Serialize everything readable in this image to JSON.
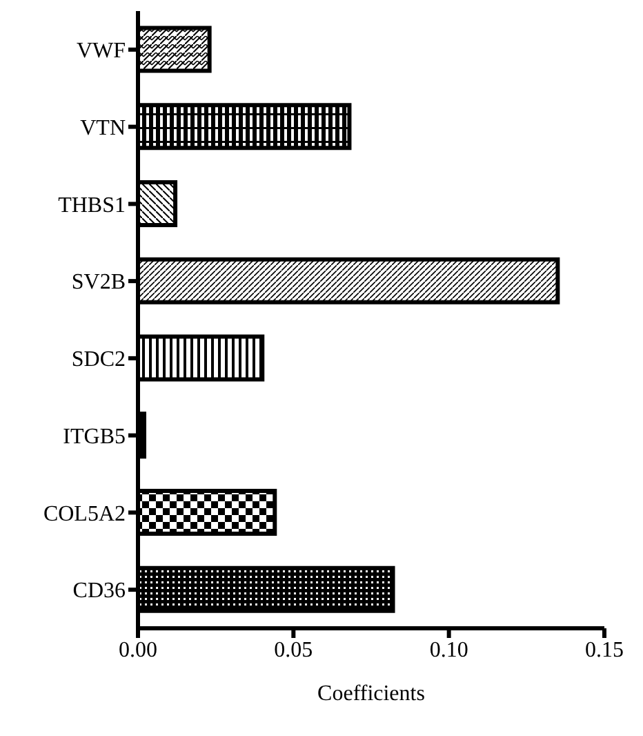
{
  "chart_data": {
    "type": "bar",
    "orientation": "horizontal",
    "xlabel": "Coefficients",
    "categories": [
      "VWF",
      "VTN",
      "THBS1",
      "SV2B",
      "SDC2",
      "ITGB5",
      "COL5A2",
      "CD36"
    ],
    "values": [
      0.023,
      0.068,
      0.012,
      0.135,
      0.04,
      0.002,
      0.044,
      0.082
    ],
    "color": "#000000",
    "xlim": [
      0,
      0.15
    ],
    "xticks": [
      {
        "value": 0,
        "label": "0.00"
      },
      {
        "value": 0.05,
        "label": "0.05"
      },
      {
        "value": 0.1,
        "label": "0.10"
      },
      {
        "value": 0.15,
        "label": "0.15"
      }
    ],
    "grid": false,
    "legend": false
  }
}
